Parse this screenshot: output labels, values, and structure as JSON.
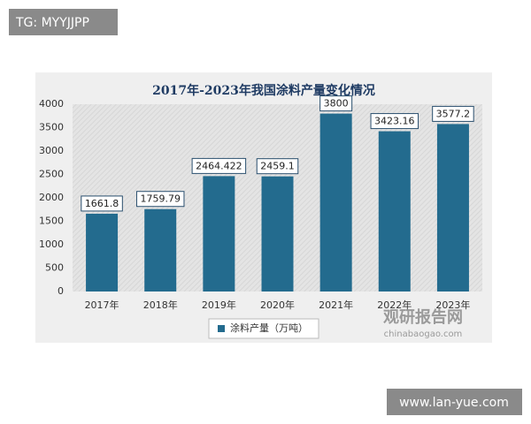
{
  "overlay_top": "TG: MYYJJPP",
  "overlay_bottom": "www.lan-yue.com",
  "watermark": {
    "name": "观研报告网",
    "url": "chinabaogao.com"
  },
  "chart_data": {
    "type": "bar",
    "title": "2017年-2023年我国涂料产量变化情况",
    "categories": [
      "2017年",
      "2018年",
      "2019年",
      "2020年",
      "2021年",
      "2022年",
      "2023年"
    ],
    "series": [
      {
        "name": "涂料产量（万吨）",
        "color": "#236b8e",
        "values": [
          1661.8,
          1759.79,
          2464.422,
          2459.1,
          3800,
          3423.16,
          3577.2
        ]
      }
    ],
    "ylim": [
      0,
      4000
    ],
    "yticks": [
      0,
      500,
      1000,
      1500,
      2000,
      2500,
      3000,
      3500,
      4000
    ],
    "grid": false,
    "legend": "bottom"
  }
}
